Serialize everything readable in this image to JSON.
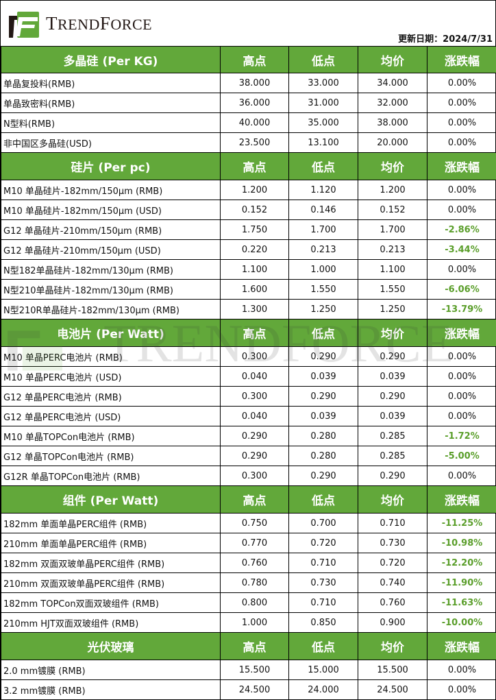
{
  "header": {
    "brand": "TrendForce",
    "brand_big_letters": [
      "T",
      "F"
    ],
    "brand_parts": [
      "T",
      "REND",
      "F",
      "ORCE"
    ],
    "update_label": "更新日期：2024/7/31",
    "colors": {
      "header_green": "#62a83a",
      "negative_text": "#5a9e2a"
    }
  },
  "sections": [
    {
      "title": "多晶硅 (Per KG)",
      "cols": [
        "高点",
        "低点",
        "均价",
        "涨跌幅"
      ],
      "rows": [
        [
          "单晶复投料(RMB)",
          "38.000",
          "33.000",
          "34.000",
          "0.00%"
        ],
        [
          "单晶致密料(RMB)",
          "36.000",
          "31.000",
          "32.000",
          "0.00%"
        ],
        [
          "N型料(RMB)",
          "40.000",
          "35.000",
          "38.000",
          "0.00%"
        ],
        [
          "非中国区多晶硅(USD)",
          "23.500",
          "13.100",
          "20.000",
          "0.00%"
        ]
      ]
    },
    {
      "title": "硅片 (Per pc)",
      "cols": [
        "高点",
        "低点",
        "均价",
        "涨跌幅"
      ],
      "rows": [
        [
          "M10 单晶硅片-182mm/150μm (RMB)",
          "1.200",
          "1.120",
          "1.200",
          "0.00%"
        ],
        [
          "M10 单晶硅片-182mm/150μm (USD)",
          "0.152",
          "0.146",
          "0.152",
          "0.00%"
        ],
        [
          "G12 单晶硅片-210mm/150μm  (RMB)",
          "1.750",
          "1.700",
          "1.700",
          "-2.86%"
        ],
        [
          "G12 单晶硅片-210mm/150μm  (USD)",
          "0.220",
          "0.213",
          "0.213",
          "-3.44%"
        ],
        [
          "N型182单晶硅片-182mm/130μm (RMB)",
          "1.100",
          "1.000",
          "1.100",
          "0.00%"
        ],
        [
          "N型210单晶硅片-182mm/130μm (RMB)",
          "1.600",
          "1.550",
          "1.550",
          "-6.06%"
        ],
        [
          "N型210R单晶硅片-182mm/130μm (RMB)",
          "1.300",
          "1.250",
          "1.250",
          "-13.79%"
        ]
      ]
    },
    {
      "title": "电池片 (Per Watt)",
      "cols": [
        "高点",
        "低点",
        "均价",
        "涨跌幅"
      ],
      "rows": [
        [
          "M10 单晶PERC电池片 (RMB)",
          "0.300",
          "0.290",
          "0.290",
          "0.00%"
        ],
        [
          "M10 单晶PERC电池片 (USD)",
          "0.040",
          "0.039",
          "0.039",
          "0.00%"
        ],
        [
          "G12 单晶PERC电池片 (RMB)",
          "0.300",
          "0.290",
          "0.290",
          "0.00%"
        ],
        [
          "G12 单晶PERC电池片 (USD)",
          "0.040",
          "0.039",
          "0.039",
          "0.00%"
        ],
        [
          "M10 单晶TOPCon电池片 (RMB)",
          "0.290",
          "0.280",
          "0.285",
          "-1.72%"
        ],
        [
          "G12 单晶TOPCon电池片 (RMB)",
          "0.290",
          "0.280",
          "0.285",
          "-5.00%"
        ],
        [
          "G12R 单晶TOPCon电池片 (RMB)",
          "0.300",
          "0.290",
          "0.290",
          "0.00%"
        ]
      ]
    },
    {
      "title": "组件 (Per Watt)",
      "cols": [
        "高点",
        "低点",
        "均价",
        "涨跌幅"
      ],
      "rows": [
        [
          "182mm 单面单晶PERC组件 (RMB)",
          "0.750",
          "0.700",
          "0.710",
          "-11.25%"
        ],
        [
          "210mm 单面单晶PERC组件 (RMB)",
          "0.770",
          "0.720",
          "0.730",
          "-10.98%"
        ],
        [
          "182mm 双面双玻单晶PERC组件 (RMB)",
          "0.760",
          "0.710",
          "0.720",
          "-12.20%"
        ],
        [
          "210mm 双面双玻单晶PERC组件 (RMB)",
          "0.780",
          "0.730",
          "0.740",
          "-11.90%"
        ],
        [
          "182mm TOPCon双面双玻组件 (RMB)",
          "0.800",
          "0.710",
          "0.760",
          "-11.63%"
        ],
        [
          "210mm HJT双面双玻组件 (RMB)",
          "1.000",
          "0.850",
          "0.900",
          "-10.00%"
        ]
      ]
    },
    {
      "title": "光伏玻璃",
      "cols": [
        "高点",
        "低点",
        "均价",
        "涨跌幅"
      ],
      "rows": [
        [
          "2.0 mm镀膜 (RMB)",
          "15.500",
          "15.000",
          "15.500",
          "0.00%"
        ],
        [
          "3.2 mm镀膜 (RMB)",
          "24.500",
          "24.000",
          "24.500",
          "0.00%"
        ]
      ]
    }
  ]
}
